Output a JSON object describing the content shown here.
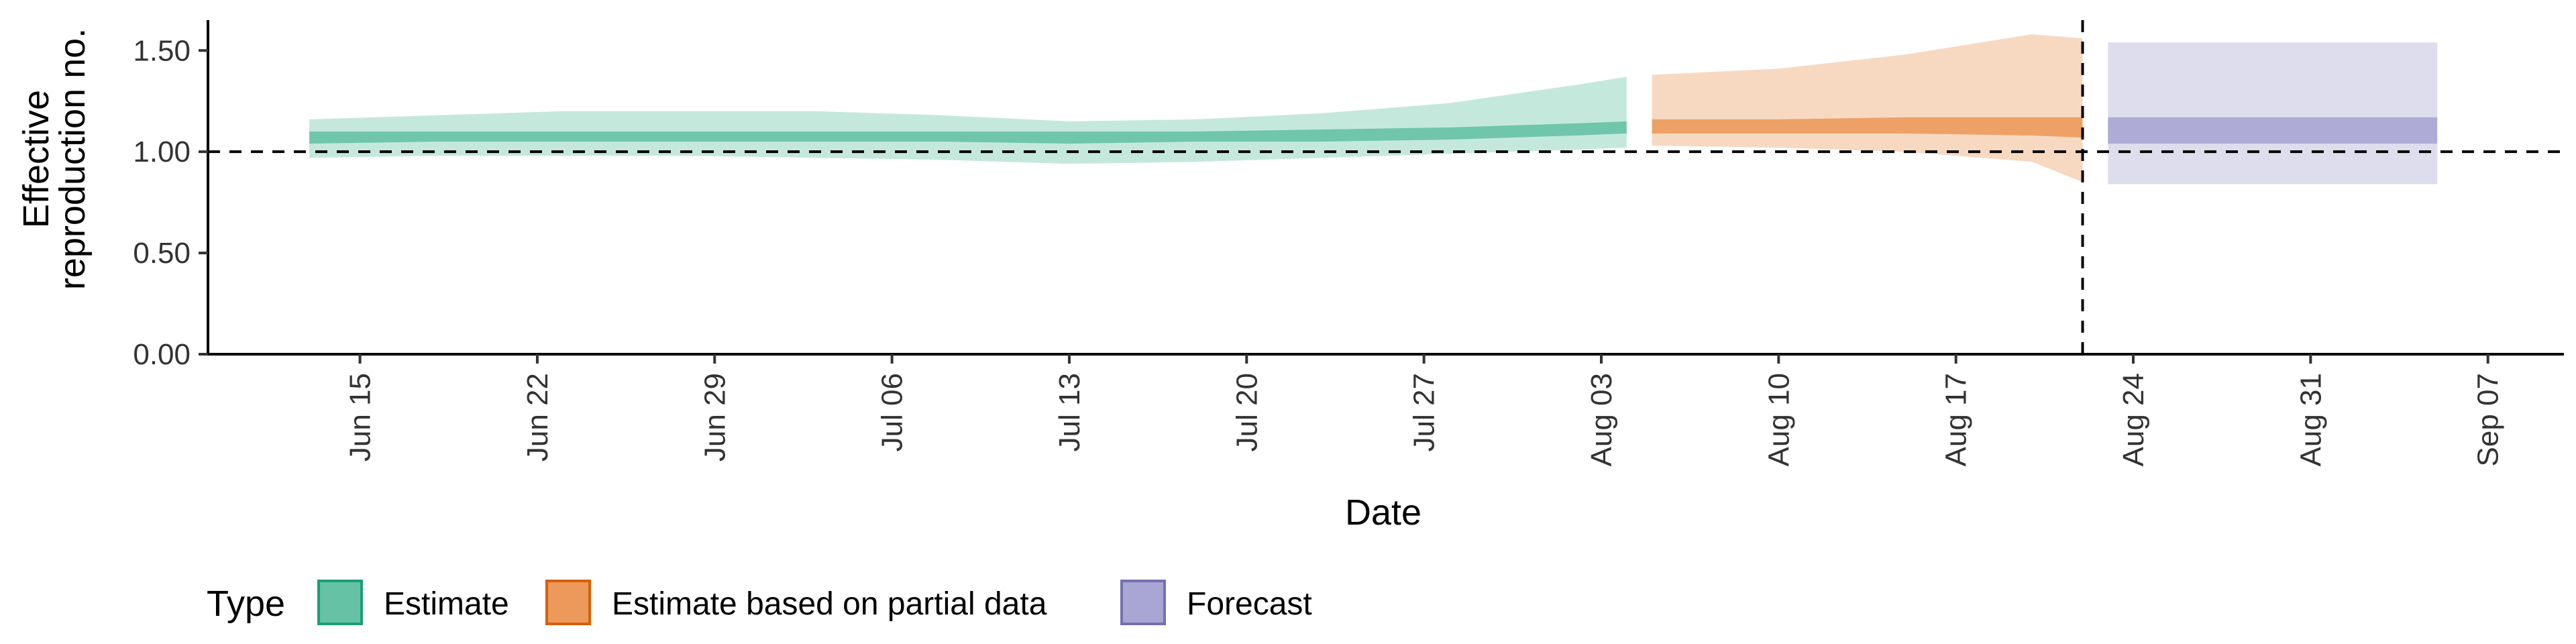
{
  "chart_data": {
    "type": "area",
    "title": "",
    "xlabel": "Date",
    "ylabel_lines": [
      "Effective",
      "reproduction no."
    ],
    "ylim": [
      0,
      1.65
    ],
    "yticks": [
      0,
      0.5,
      1.0,
      1.5
    ],
    "ytick_labels": [
      "0.00",
      "0.50",
      "1.00",
      "1.50"
    ],
    "xlim": [
      "2020-06-09",
      "2020-09-10"
    ],
    "xticks": [
      "2020-06-15",
      "2020-06-22",
      "2020-06-29",
      "2020-07-06",
      "2020-07-13",
      "2020-07-20",
      "2020-07-27",
      "2020-08-03",
      "2020-08-10",
      "2020-08-17",
      "2020-08-24",
      "2020-08-31",
      "2020-09-07"
    ],
    "xtick_labels": [
      "Jun 15",
      "Jun 22",
      "Jun 29",
      "Jul 06",
      "Jul 13",
      "Jul 20",
      "Jul 27",
      "Aug 03",
      "Aug 10",
      "Aug 17",
      "Aug 24",
      "Aug 31",
      "Sep 07"
    ],
    "reference_hline": 1.0,
    "reference_vline": "2020-08-22",
    "grid": false,
    "legend": {
      "title": "Type",
      "placement": "bottom-left",
      "entries": [
        {
          "label": "Estimate",
          "fill": "#66c2a5",
          "stroke": "#1b9e77"
        },
        {
          "label": "Estimate based on partial data",
          "fill": "#eb9a5c",
          "stroke": "#d95f02"
        },
        {
          "label": "Forecast",
          "fill": "#a9a6d3",
          "stroke": "#7570b3"
        }
      ]
    },
    "series": [
      {
        "name": "Estimate",
        "color": "#66c2a5",
        "points": [
          {
            "date": "2020-06-13",
            "lower90": 0.97,
            "lower50": 1.04,
            "median": 1.07,
            "upper50": 1.1,
            "upper90": 1.16
          },
          {
            "date": "2020-06-18",
            "lower90": 0.98,
            "lower50": 1.05,
            "median": 1.07,
            "upper50": 1.1,
            "upper90": 1.18
          },
          {
            "date": "2020-06-23",
            "lower90": 0.98,
            "lower50": 1.05,
            "median": 1.07,
            "upper50": 1.1,
            "upper90": 1.2
          },
          {
            "date": "2020-06-28",
            "lower90": 0.98,
            "lower50": 1.05,
            "median": 1.07,
            "upper50": 1.1,
            "upper90": 1.2
          },
          {
            "date": "2020-07-03",
            "lower90": 0.97,
            "lower50": 1.05,
            "median": 1.07,
            "upper50": 1.1,
            "upper90": 1.2
          },
          {
            "date": "2020-07-08",
            "lower90": 0.96,
            "lower50": 1.05,
            "median": 1.07,
            "upper50": 1.1,
            "upper90": 1.18
          },
          {
            "date": "2020-07-13",
            "lower90": 0.94,
            "lower50": 1.04,
            "median": 1.07,
            "upper50": 1.1,
            "upper90": 1.15
          },
          {
            "date": "2020-07-18",
            "lower90": 0.95,
            "lower50": 1.05,
            "median": 1.07,
            "upper50": 1.1,
            "upper90": 1.16
          },
          {
            "date": "2020-07-23",
            "lower90": 0.97,
            "lower50": 1.05,
            "median": 1.08,
            "upper50": 1.11,
            "upper90": 1.19
          },
          {
            "date": "2020-07-28",
            "lower90": 0.99,
            "lower50": 1.06,
            "median": 1.09,
            "upper50": 1.12,
            "upper90": 1.24
          },
          {
            "date": "2020-08-02",
            "lower90": 1.01,
            "lower50": 1.08,
            "median": 1.1,
            "upper50": 1.14,
            "upper90": 1.33
          },
          {
            "date": "2020-08-04",
            "lower90": 1.02,
            "lower50": 1.09,
            "median": 1.11,
            "upper50": 1.15,
            "upper90": 1.37
          }
        ]
      },
      {
        "name": "Estimate based on partial data",
        "color": "#eb9a5c",
        "points": [
          {
            "date": "2020-08-05",
            "lower90": 1.03,
            "lower50": 1.09,
            "median": 1.12,
            "upper50": 1.16,
            "upper90": 1.38
          },
          {
            "date": "2020-08-10",
            "lower90": 1.02,
            "lower50": 1.09,
            "median": 1.12,
            "upper50": 1.16,
            "upper90": 1.41
          },
          {
            "date": "2020-08-15",
            "lower90": 1.0,
            "lower50": 1.09,
            "median": 1.12,
            "upper50": 1.17,
            "upper90": 1.48
          },
          {
            "date": "2020-08-20",
            "lower90": 0.95,
            "lower50": 1.08,
            "median": 1.12,
            "upper50": 1.17,
            "upper90": 1.58
          },
          {
            "date": "2020-08-22",
            "lower90": 0.85,
            "lower50": 1.07,
            "median": 1.12,
            "upper50": 1.17,
            "upper90": 1.56
          }
        ]
      },
      {
        "name": "Forecast",
        "color": "#a9a6d3",
        "points": [
          {
            "date": "2020-08-23",
            "lower90": 0.84,
            "lower50": 1.04,
            "median": 1.12,
            "upper50": 1.17,
            "upper90": 1.54
          },
          {
            "date": "2020-09-05",
            "lower90": 0.84,
            "lower50": 1.04,
            "median": 1.12,
            "upper50": 1.17,
            "upper90": 1.54
          }
        ]
      }
    ]
  }
}
